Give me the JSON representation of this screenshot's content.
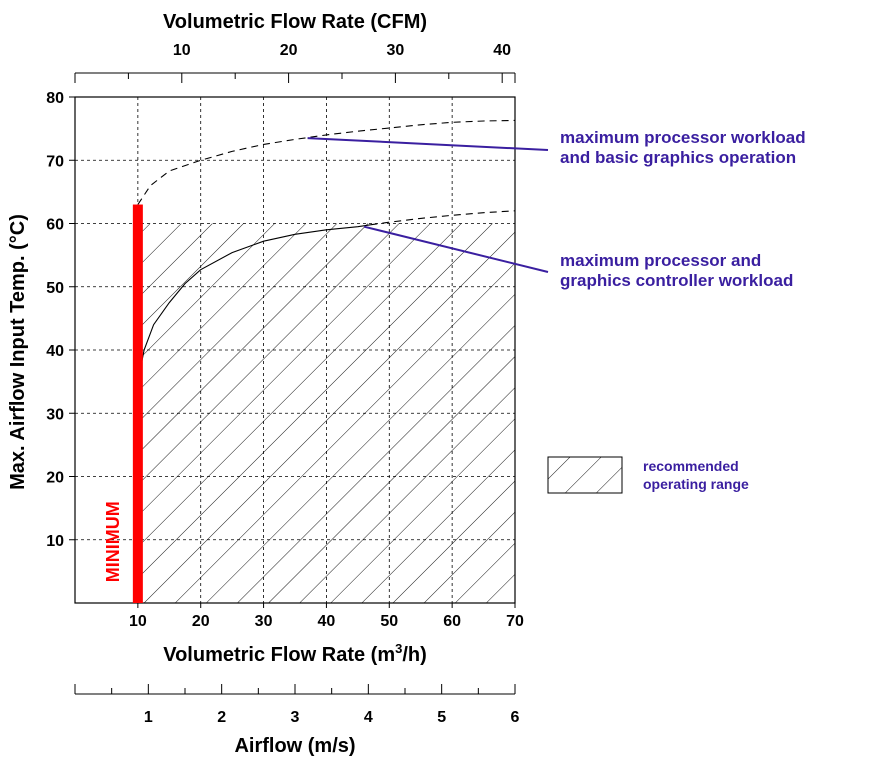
{
  "chart_data": {
    "type": "line",
    "top_axis": {
      "title": "Volumetric Flow Rate (CFM)",
      "unit": "CFM",
      "ticks": [
        10,
        20,
        30,
        40
      ],
      "tick_labels": [
        "10",
        "20",
        "30",
        "40"
      ],
      "range": [
        0,
        41.2
      ],
      "minor_step": 5
    },
    "bottom_axis": {
      "title_prefix": "Volumetric Flow Rate (m",
      "title_sup": "3",
      "title_suffix": "/h)",
      "ticks": [
        10,
        20,
        30,
        40,
        50,
        60,
        70
      ],
      "tick_labels": [
        "10",
        "20",
        "30",
        "40",
        "50",
        "60",
        "70"
      ],
      "range": [
        0,
        70
      ]
    },
    "airflow_axis": {
      "title": "Airflow (m/s)",
      "ticks": [
        1,
        2,
        3,
        4,
        5,
        6
      ],
      "tick_labels": [
        "1",
        "2",
        "3",
        "4",
        "5",
        "6"
      ],
      "range": [
        0,
        6
      ],
      "minor_step": 0.5
    },
    "y_axis": {
      "title": "Max. Airflow Input Temp. (°C)",
      "ticks": [
        10,
        20,
        30,
        40,
        50,
        60,
        70,
        80
      ],
      "tick_labels": [
        "10",
        "20",
        "30",
        "40",
        "50",
        "60",
        "70",
        "80"
      ],
      "range": [
        0,
        80
      ]
    },
    "grid": true,
    "series": [
      {
        "line_style": "dashed",
        "points": [
          [
            10,
            63
          ],
          [
            12,
            66
          ],
          [
            15,
            68.3
          ],
          [
            20,
            70
          ],
          [
            25,
            71.4
          ],
          [
            30,
            72.5
          ],
          [
            35,
            73.3
          ],
          [
            40,
            74
          ],
          [
            45,
            74.6
          ],
          [
            50,
            75.1
          ],
          [
            55,
            75.6
          ],
          [
            60,
            76
          ],
          [
            65,
            76.2
          ],
          [
            70,
            76.3
          ]
        ]
      },
      {
        "line_style": "solid_then_dashed",
        "dash_from_x": 47,
        "points": [
          [
            10,
            35
          ],
          [
            11,
            40
          ],
          [
            12.5,
            44
          ],
          [
            15,
            47.5
          ],
          [
            17.5,
            50.5
          ],
          [
            20,
            52.7
          ],
          [
            25,
            55.4
          ],
          [
            30,
            57.2
          ],
          [
            35,
            58.3
          ],
          [
            40,
            59
          ],
          [
            45,
            59.5
          ],
          [
            47,
            59.8
          ],
          [
            50,
            60.2
          ],
          [
            55,
            60.8
          ],
          [
            60,
            61.3
          ],
          [
            65,
            61.7
          ],
          [
            70,
            62
          ]
        ]
      }
    ],
    "recommended_range": {
      "x_min": 10,
      "x_max": 70,
      "y_min": 0,
      "y_max": 60
    },
    "minimum": {
      "x": 10,
      "y_max": 63,
      "label": "MINIMUM",
      "color": "#ff0000"
    },
    "annotations": [
      {
        "lines": [
          "maximum processor workload",
          "and basic graphics operation"
        ],
        "pointer_to": [
          37,
          73.5
        ]
      },
      {
        "lines": [
          "maximum processor and",
          "graphics controller workload"
        ],
        "pointer_to": [
          46,
          59.5
        ]
      }
    ],
    "legend": {
      "lines": [
        "recommended",
        "operating range"
      ],
      "placement": "right"
    },
    "colors": {
      "annotation": "#3a1fa0",
      "minimum": "#ff0000",
      "lines": "#000000"
    }
  }
}
